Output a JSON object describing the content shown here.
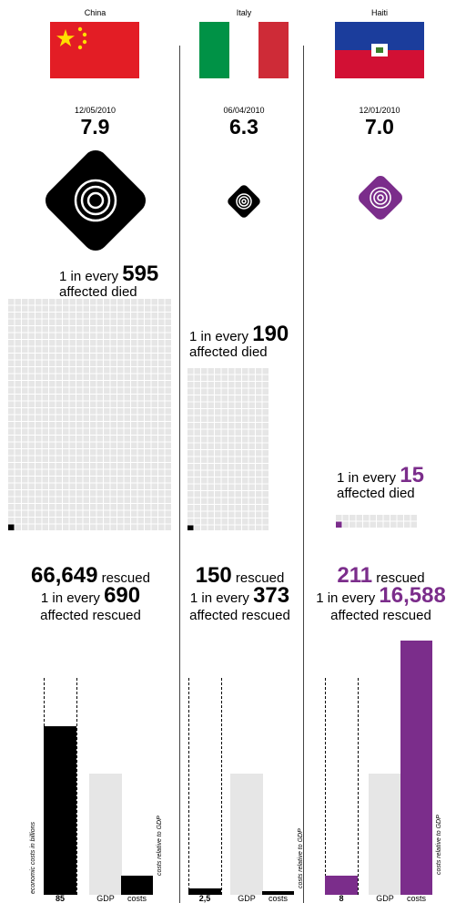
{
  "colors": {
    "accent": "#7b2d8b",
    "grid": "#e6e6e6",
    "gdp": "#e6e6e6"
  },
  "labels": {
    "one_in_every": "1 in every",
    "affected_died": "affected died",
    "affected_rescued": "affected rescued",
    "rescued": "rescued",
    "gdp": "GDP",
    "costs": "costs",
    "econ_axis": "economic costs in billions",
    "rel_axis": "costs relative to GDP"
  },
  "countries": [
    {
      "name": "China",
      "date": "12/05/2010",
      "magnitude": "7.9",
      "died_ratio": "595",
      "rescued_count": "66,649",
      "rescued_ratio": "690",
      "econ_cost": "85"
    },
    {
      "name": "Italy",
      "date": "06/04/2010",
      "magnitude": "6.3",
      "died_ratio": "190",
      "rescued_count": "150",
      "rescued_ratio": "373",
      "econ_cost": "2,5"
    },
    {
      "name": "Haiti",
      "date": "12/01/2010",
      "magnitude": "7.0",
      "died_ratio": "15",
      "rescued_count": "211",
      "rescued_ratio": "16,588",
      "econ_cost": "8"
    }
  ],
  "chart_data": {
    "type": "bar",
    "categories": [
      "China",
      "Italy",
      "Haiti"
    ],
    "series": [
      {
        "name": "economic costs in billions",
        "values": [
          85,
          2.5,
          8
        ]
      },
      {
        "name": "costs relative to GDP",
        "values": [
          0.09,
          0.03,
          1.35
        ]
      }
    ],
    "magnitude": [
      7.9,
      6.3,
      7.0
    ],
    "died_one_in_every": [
      595,
      190,
      15
    ],
    "rescued": [
      66649,
      150,
      211
    ],
    "rescued_one_in_every": [
      690,
      373,
      16588
    ]
  }
}
